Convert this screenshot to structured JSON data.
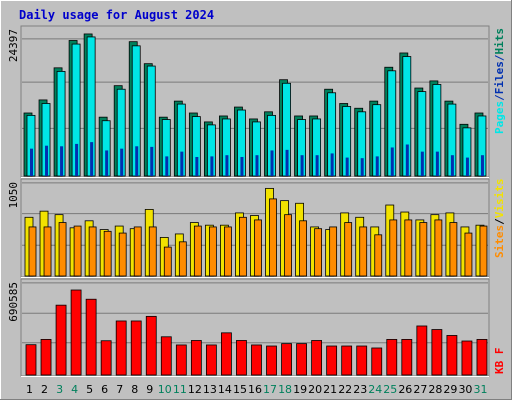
{
  "title": "Daily usage for August 2024",
  "colors": {
    "background": "#c0c0c0",
    "title": "#0000cc",
    "hits": "#00805c",
    "files": "#00e6e6",
    "pages": "#0030b0",
    "visits": "#f2e200",
    "sites": "#ff8c00",
    "kbytes": "#ff0000",
    "weekend_day_label": "#00805c",
    "weekday_label": "#000000"
  },
  "chart_data": [
    {
      "type": "bar",
      "panel": "top",
      "title": "Daily usage for August 2024",
      "ymax_label": "24397",
      "ylim": [
        0,
        24397
      ],
      "grid": true,
      "categories": [
        "1",
        "2",
        "3",
        "4",
        "5",
        "6",
        "7",
        "8",
        "9",
        "10",
        "11",
        "12",
        "13",
        "14",
        "15",
        "16",
        "17",
        "18",
        "19",
        "20",
        "21",
        "22",
        "23",
        "24",
        "25",
        "26",
        "27",
        "28",
        "29",
        "30",
        "31"
      ],
      "weekend_days": [
        "3",
        "4",
        "10",
        "11",
        "17",
        "18",
        "24",
        "25",
        "31"
      ],
      "legend": [
        "Hits",
        "/",
        "Files",
        "/",
        "Pages"
      ],
      "series": [
        {
          "name": "Hits",
          "values": [
            10600,
            12800,
            18200,
            22800,
            23900,
            9900,
            15200,
            22600,
            18900,
            9900,
            12600,
            10600,
            9100,
            10100,
            11600,
            9600,
            10800,
            16200,
            10100,
            10100,
            14600,
            12200,
            11400,
            12600,
            18300,
            20700,
            14800,
            16000,
            12600,
            8700,
            10600
          ]
        },
        {
          "name": "Files",
          "values": [
            10200,
            12200,
            17600,
            22200,
            23400,
            9300,
            14600,
            21900,
            18500,
            9500,
            12100,
            10000,
            8600,
            9600,
            11100,
            9100,
            10200,
            15600,
            9500,
            9600,
            14000,
            11700,
            10800,
            12000,
            17700,
            20100,
            14200,
            15400,
            12100,
            8100,
            10100
          ]
        },
        {
          "name": "Pages",
          "values": [
            4600,
            5100,
            5000,
            5400,
            5700,
            4300,
            4600,
            5000,
            4900,
            3300,
            4100,
            3200,
            3300,
            3500,
            3200,
            3500,
            4300,
            4400,
            3500,
            3500,
            3800,
            3100,
            3000,
            3300,
            4800,
            5300,
            4100,
            4100,
            3500,
            3100,
            3500
          ]
        }
      ]
    },
    {
      "type": "bar",
      "panel": "middle",
      "ymax_label": "1050",
      "ylim": [
        0,
        1050
      ],
      "grid": true,
      "categories": [
        "1",
        "2",
        "3",
        "4",
        "5",
        "6",
        "7",
        "8",
        "9",
        "10",
        "11",
        "12",
        "13",
        "14",
        "15",
        "16",
        "17",
        "18",
        "19",
        "20",
        "21",
        "22",
        "23",
        "24",
        "25",
        "26",
        "27",
        "28",
        "29",
        "30",
        "31"
      ],
      "legend": [
        "Sites",
        "/",
        "Visits"
      ],
      "series": [
        {
          "name": "Visits",
          "values": [
            670,
            740,
            700,
            550,
            630,
            530,
            570,
            540,
            760,
            440,
            480,
            610,
            580,
            580,
            720,
            690,
            1000,
            860,
            830,
            560,
            530,
            720,
            670,
            560,
            810,
            730,
            640,
            700,
            720,
            560,
            580
          ]
        },
        {
          "name": "Sites",
          "values": [
            560,
            560,
            610,
            570,
            560,
            510,
            490,
            560,
            560,
            330,
            390,
            570,
            560,
            560,
            670,
            640,
            880,
            700,
            630,
            540,
            560,
            610,
            560,
            470,
            640,
            640,
            610,
            640,
            610,
            490,
            570
          ]
        }
      ]
    },
    {
      "type": "bar",
      "panel": "bottom",
      "ymax_label": "690585",
      "ylim": [
        0,
        690585
      ],
      "grid": true,
      "categories": [
        "1",
        "2",
        "3",
        "4",
        "5",
        "6",
        "7",
        "8",
        "9",
        "10",
        "11",
        "12",
        "13",
        "14",
        "15",
        "16",
        "17",
        "18",
        "19",
        "20",
        "21",
        "22",
        "23",
        "24",
        "25",
        "26",
        "27",
        "28",
        "29",
        "30",
        "31"
      ],
      "legend": [
        "KB F"
      ],
      "series": [
        {
          "name": "KB F",
          "values": [
            230000,
            270000,
            530000,
            645000,
            575000,
            260000,
            410000,
            410000,
            445000,
            290000,
            228000,
            262000,
            228000,
            320000,
            262000,
            228000,
            220000,
            238000,
            238000,
            262000,
            220000,
            220000,
            220000,
            205000,
            270000,
            270000,
            372000,
            345000,
            300000,
            258000,
            270000
          ]
        }
      ]
    }
  ]
}
